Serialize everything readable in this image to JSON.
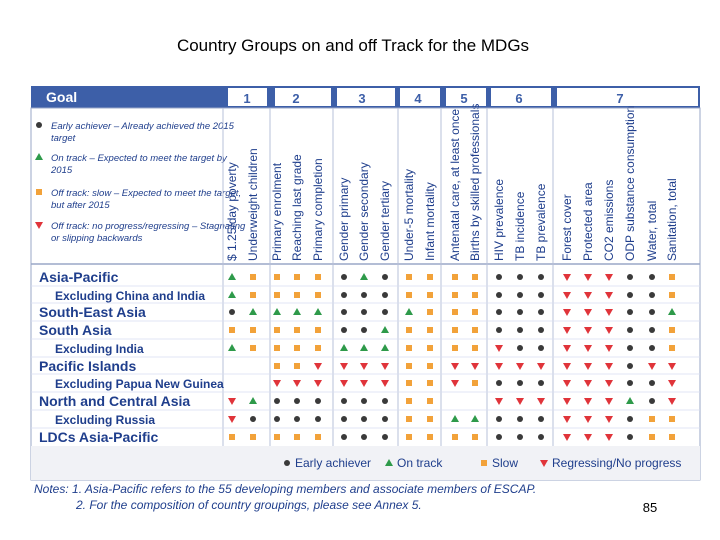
{
  "slide_title": "Country Groups on and off Track for the MDGs",
  "page_number": "85",
  "goal_header": "Goal",
  "goal_numbers": [
    "1",
    "2",
    "3",
    "4",
    "5",
    "6",
    "7"
  ],
  "legend_entries": [
    {
      "marker": "dot",
      "text": "Early achiever – Already achieved the 2015 target"
    },
    {
      "marker": "tri_up",
      "text": "On track – Expected to meet the target by 2015"
    },
    {
      "marker": "square",
      "text": "Off track: slow – Expected to meet the target, but after 2015"
    },
    {
      "marker": "tri_down",
      "text": "Off track: no progress/regressing – Stagnating or slipping backwards"
    }
  ],
  "indicators": [
    "$ 1.25/day poverty",
    "Underweight children",
    "Primary enrolment",
    "Reaching last grade",
    "Primary completion",
    "Gender primary",
    "Gender secondary",
    "Gender tertiary",
    "Under-5 mortality",
    "Infant mortality",
    "Antenatal care, at least once",
    "Births by skilled professionals",
    "HIV prevalence",
    "TB incidence",
    "TB prevalence",
    "Forest cover",
    "Protected area",
    "CO2 emissions",
    "ODP substance consumption",
    "Water, total",
    "Sanitation, total"
  ],
  "groups": [
    {
      "name": "Asia-Pacific",
      "sub": false,
      "status": [
        "U",
        "S",
        "S",
        "S",
        "S",
        "D",
        "U",
        "D",
        "S",
        "S",
        "S",
        "S",
        "D",
        "D",
        "D",
        "R",
        "R",
        "R",
        "D",
        "D",
        "S"
      ]
    },
    {
      "name": "Excluding China and India",
      "sub": true,
      "status": [
        "U",
        "S",
        "S",
        "S",
        "S",
        "D",
        "D",
        "D",
        "S",
        "S",
        "S",
        "S",
        "D",
        "D",
        "D",
        "R",
        "R",
        "R",
        "D",
        "D",
        "S"
      ]
    },
    {
      "name": "South-East Asia",
      "sub": false,
      "status": [
        "D",
        "U",
        "U",
        "U",
        "U",
        "D",
        "D",
        "D",
        "U",
        "S",
        "S",
        "S",
        "D",
        "D",
        "D",
        "R",
        "R",
        "R",
        "D",
        "D",
        "U"
      ]
    },
    {
      "name": "South Asia",
      "sub": false,
      "status": [
        "S",
        "S",
        "S",
        "S",
        "S",
        "D",
        "D",
        "U",
        "S",
        "S",
        "S",
        "S",
        "D",
        "D",
        "D",
        "R",
        "R",
        "R",
        "D",
        "D",
        "S"
      ]
    },
    {
      "name": "Excluding India",
      "sub": true,
      "status": [
        "U",
        "S",
        "S",
        "S",
        "S",
        "U",
        "U",
        "U",
        "S",
        "S",
        "S",
        "S",
        "R",
        "D",
        "D",
        "R",
        "R",
        "R",
        "D",
        "D",
        "S"
      ]
    },
    {
      "name": "Pacific Islands",
      "sub": false,
      "status": [
        "",
        "",
        "S",
        "S",
        "R",
        "R",
        "R",
        "R",
        "S",
        "S",
        "R",
        "R",
        "R",
        "R",
        "R",
        "R",
        "R",
        "R",
        "D",
        "R",
        "R"
      ]
    },
    {
      "name": "Excluding Papua New Guinea",
      "sub": true,
      "status": [
        "",
        "",
        "R",
        "R",
        "R",
        "R",
        "R",
        "R",
        "S",
        "S",
        "R",
        "S",
        "D",
        "D",
        "D",
        "R",
        "R",
        "R",
        "D",
        "D",
        "R"
      ]
    },
    {
      "name": "North and Central Asia",
      "sub": false,
      "status": [
        "R",
        "U",
        "D",
        "D",
        "D",
        "D",
        "D",
        "D",
        "S",
        "S",
        "",
        "",
        "R",
        "R",
        "R",
        "R",
        "R",
        "R",
        "U",
        "D",
        "R"
      ]
    },
    {
      "name": "Excluding Russia",
      "sub": true,
      "status": [
        "R",
        "D",
        "D",
        "D",
        "D",
        "D",
        "D",
        "D",
        "S",
        "S",
        "U",
        "U",
        "D",
        "D",
        "D",
        "R",
        "R",
        "R",
        "D",
        "S",
        "S"
      ]
    },
    {
      "name": "LDCs Asia-Pacific",
      "sub": false,
      "status": [
        "S",
        "S",
        "S",
        "S",
        "S",
        "D",
        "D",
        "D",
        "S",
        "S",
        "S",
        "S",
        "D",
        "D",
        "D",
        "R",
        "R",
        "R",
        "D",
        "S",
        "S"
      ]
    }
  ],
  "bottom_legend": [
    {
      "marker": "dot",
      "label": "Early achiever"
    },
    {
      "marker": "tri_up",
      "label": "On track"
    },
    {
      "marker": "square",
      "label": "Slow"
    },
    {
      "marker": "tri_down",
      "label": "Regressing/No progress"
    }
  ],
  "notes": {
    "line1": "Notes: 1. Asia-Pacific refers to the 55 developing members and associate members of ESCAP.",
    "line2": "2. For the composition of country groupings, please see Annex 5."
  },
  "colors": {
    "header_blue": "#3d5fa8",
    "label_blue": "#1f3e8c",
    "dot": "#3a3a3a",
    "tri_up": "#2e9a4a",
    "square": "#f2a23a",
    "tri_down": "#e0343a"
  }
}
